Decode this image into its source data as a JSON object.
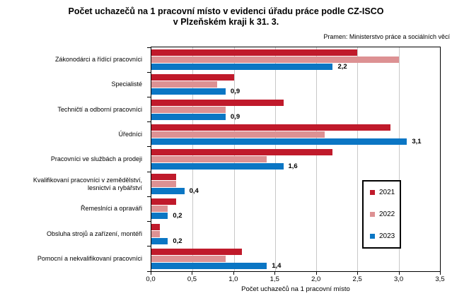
{
  "title": {
    "line1": "Počet uchazečů na 1 pracovní místo v evidenci úřadu práce podle CZ-ISCO",
    "line2": "v Plzeňském kraji k 31. 3."
  },
  "source": "Pramen: Ministerstvo práce a sociálních věcí",
  "chart_data": {
    "type": "bar",
    "orientation": "horizontal",
    "title": "Počet uchazečů na 1 pracovní místo v evidenci úřadu práce podle CZ-ISCO v Plzeňském kraji k 31. 3.",
    "xlabel": "Počet uchazečů na 1 pracovní místo",
    "xlim": [
      0,
      3.5
    ],
    "xtick_labels": [
      "0,0",
      "0,5",
      "1,0",
      "1,5",
      "2,0",
      "2,5",
      "3,0",
      "3,5"
    ],
    "grid": true,
    "legend_position": "middle-right",
    "categories": [
      "Zákonodárci a řídící pracovníci",
      "Specialisté",
      "Techničtí a odborní pracovníci",
      "Úředníci",
      "Pracovníci ve službách a prodeji",
      "Kvalifikovaní pracovníci v zemědělství,\nlesnictví a rybářství",
      "Řemeslníci a opraváři",
      "Obsluha strojů a zařízení, montéři",
      "Pomocní a nekvalifikovaní pracovníci"
    ],
    "series": [
      {
        "name": "2021",
        "color": "#C01A2B",
        "values": [
          2.5,
          1.0,
          1.6,
          2.9,
          2.2,
          0.3,
          0.3,
          0.1,
          1.1
        ]
      },
      {
        "name": "2022",
        "color": "#DD9193",
        "values": [
          3.0,
          0.8,
          0.9,
          2.1,
          1.4,
          0.3,
          0.2,
          0.1,
          0.9
        ]
      },
      {
        "name": "2023",
        "color": "#0B76C4",
        "values": [
          2.2,
          0.9,
          0.9,
          3.1,
          1.6,
          0.4,
          0.2,
          0.2,
          1.4
        ]
      }
    ],
    "value_labels_series": "2023",
    "value_labels": [
      "2,2",
      "0,9",
      "0,9",
      "3,1",
      "1,6",
      "0,4",
      "0,2",
      "0,2",
      "1,4"
    ],
    "gridline_color": "#C8C8C8"
  }
}
